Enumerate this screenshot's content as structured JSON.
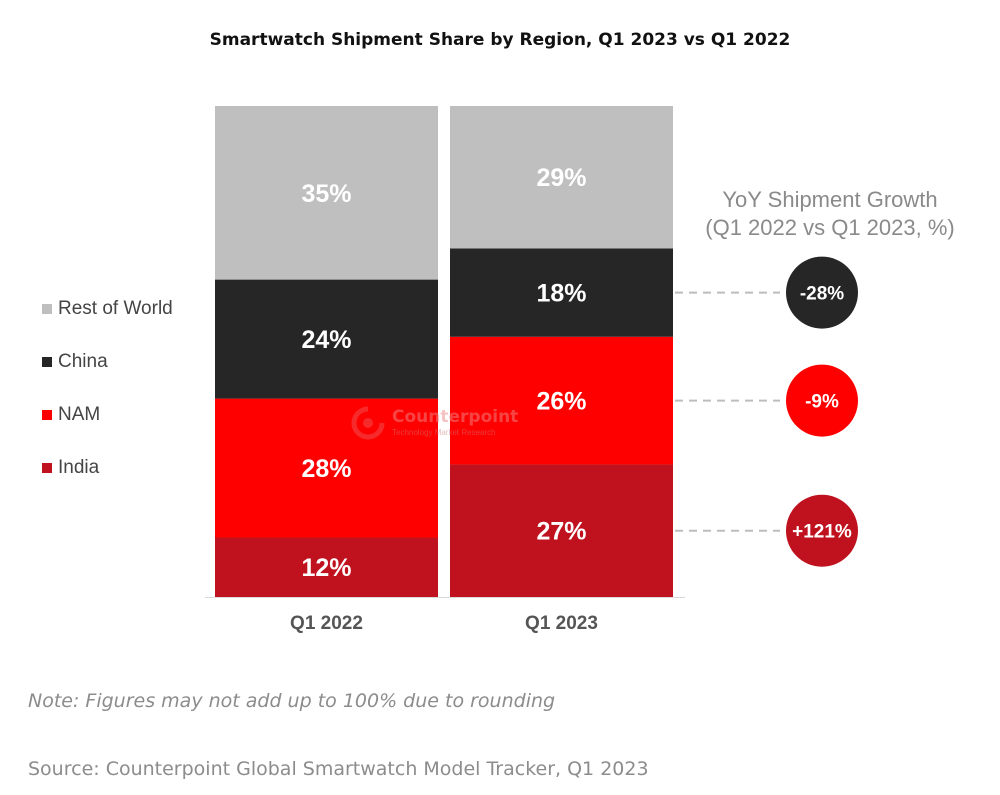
{
  "chart_data": {
    "type": "bar",
    "stacked": true,
    "title": "Smartwatch Shipment Share by Region, Q1 2023 vs Q1 2022",
    "categories": [
      "Q1 2022",
      "Q1 2023"
    ],
    "ylim": [
      0,
      100
    ],
    "series": [
      {
        "name": "India",
        "color": "#C0111E",
        "values": [
          12,
          27
        ],
        "labels": [
          "12%",
          "27%"
        ]
      },
      {
        "name": "NAM",
        "color": "#FF0000",
        "values": [
          28,
          26
        ],
        "labels": [
          "28%",
          "26%"
        ]
      },
      {
        "name": "China",
        "color": "#262626",
        "values": [
          24,
          18
        ],
        "labels": [
          "24%",
          "18%"
        ]
      },
      {
        "name": "Rest of World",
        "color": "#BFBFBF",
        "values": [
          35,
          29
        ],
        "labels": [
          "35%",
          "29%"
        ]
      }
    ],
    "legend": {
      "position": "left",
      "order": [
        "Rest of World",
        "China",
        "NAM",
        "India"
      ]
    },
    "yoy": {
      "title_line1": "YoY Shipment Growth",
      "title_line2": "(Q1 2022 vs Q1 2023, %)",
      "items": [
        {
          "series": "China",
          "value": -28,
          "label": "-28%",
          "color": "#262626"
        },
        {
          "series": "NAM",
          "value": -9,
          "label": "-9%",
          "color": "#FF0000"
        },
        {
          "series": "India",
          "value": 121,
          "label": "+121%",
          "color": "#C0111E"
        }
      ]
    }
  },
  "watermark": {
    "name": "Counterpoint",
    "tagline": "Technology Market Research"
  },
  "note": "Note: Figures may not add up to 100% due to rounding",
  "source": "Source: Counterpoint Global Smartwatch Model Tracker, Q1 2023"
}
